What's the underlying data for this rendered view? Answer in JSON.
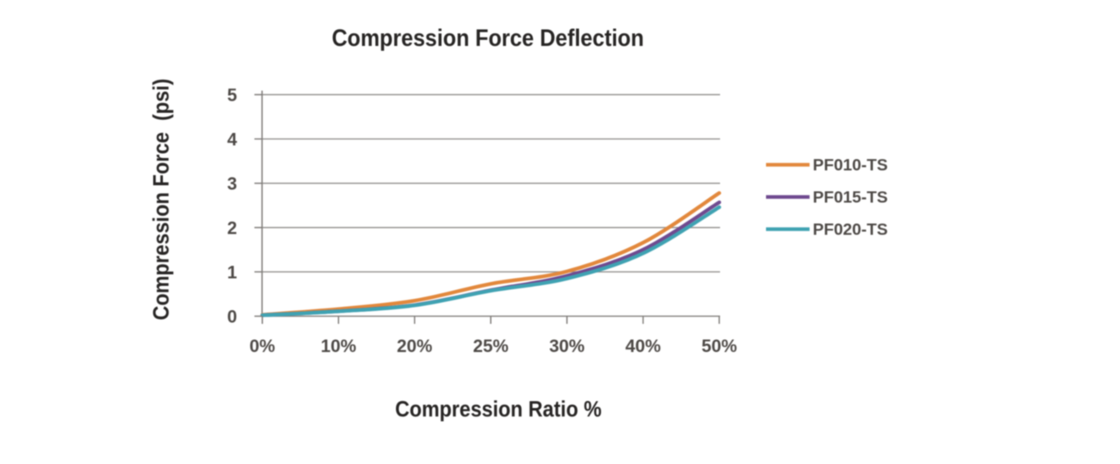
{
  "chart_data": {
    "type": "line",
    "title": "Compression Force Deflection",
    "xlabel": "Compression Ratio %",
    "ylabel": "Compression Force  (psi)",
    "categories": [
      "0%",
      "10%",
      "20%",
      "25%",
      "30%",
      "40%",
      "50%"
    ],
    "y_tick_labels": [
      "0",
      "1",
      "2",
      "3",
      "4",
      "5"
    ],
    "ylim": [
      0,
      5
    ],
    "grid": "horizontal",
    "legend_position": "right",
    "series": [
      {
        "name": "PF010-TS",
        "color": "#E2883C",
        "values": [
          0.03,
          0.16,
          0.35,
          0.73,
          1.01,
          1.66,
          2.78
        ]
      },
      {
        "name": "PF015-TS",
        "color": "#6F4A8F",
        "values": [
          0.022,
          0.112,
          0.25,
          0.585,
          0.91,
          1.5,
          2.57
        ]
      },
      {
        "name": "PF020-TS",
        "color": "#3FA2B2",
        "values": [
          0.02,
          0.11,
          0.245,
          0.575,
          0.85,
          1.42,
          2.46
        ]
      }
    ],
    "colors": {
      "title_text": "#262423",
      "tick_text": "#4C4845",
      "grid_line": "#908E8C",
      "axis_line": "#7E7B78"
    }
  }
}
